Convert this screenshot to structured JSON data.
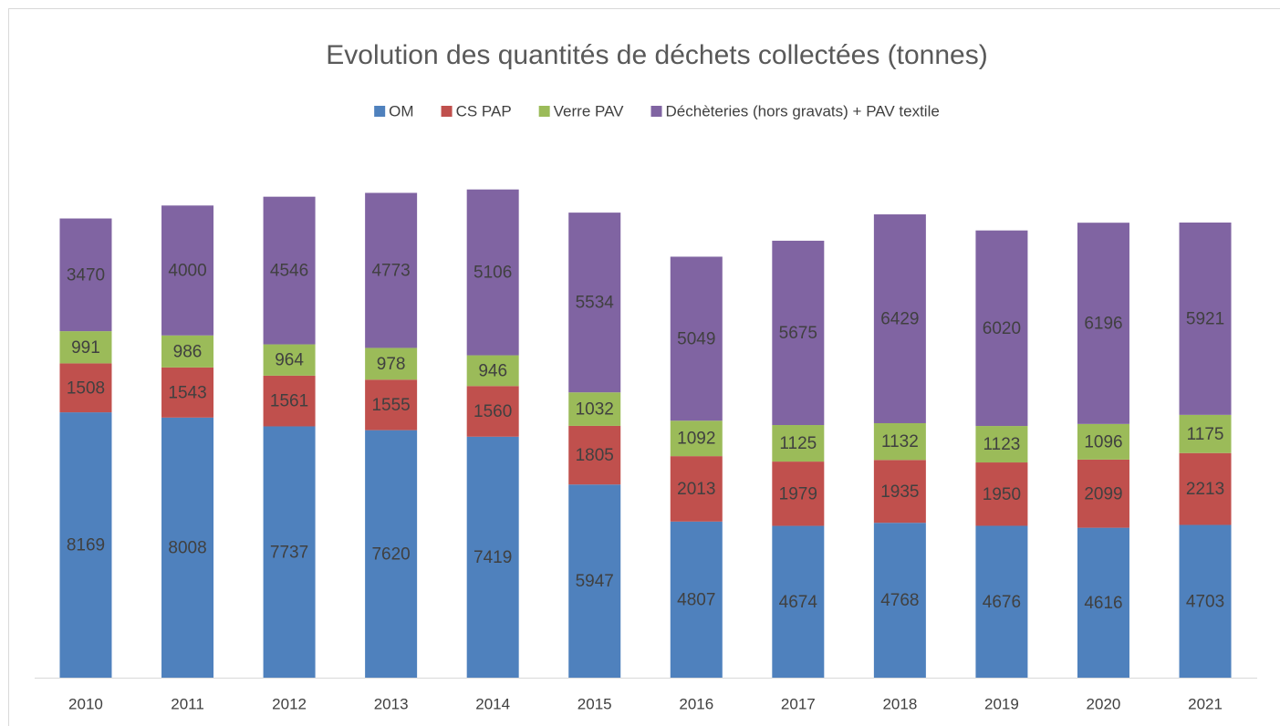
{
  "chart_data": {
    "type": "stacked-bar",
    "title": "Evolution des quantités de déchets collectées (tonnes)",
    "categories": [
      "2010",
      "2011",
      "2012",
      "2013",
      "2014",
      "2015",
      "2016",
      "2017",
      "2018",
      "2019",
      "2020",
      "2021"
    ],
    "series": [
      {
        "name": "OM",
        "color": "#4f81bd",
        "values": [
          8169,
          8008,
          7737,
          7620,
          7419,
          5947,
          4807,
          4674,
          4768,
          4676,
          4616,
          4703
        ]
      },
      {
        "name": "CS PAP",
        "color": "#c0504d",
        "values": [
          1508,
          1543,
          1561,
          1555,
          1560,
          1805,
          2013,
          1979,
          1935,
          1950,
          2099,
          2213
        ]
      },
      {
        "name": "Verre PAV",
        "color": "#9bbb59",
        "values": [
          991,
          986,
          964,
          978,
          946,
          1032,
          1092,
          1125,
          1132,
          1123,
          1096,
          1175
        ]
      },
      {
        "name": "Déchèteries (hors gravats) + PAV textile",
        "color": "#8064a2",
        "values": [
          3470,
          4000,
          4546,
          4773,
          5106,
          5534,
          5049,
          5675,
          6429,
          6020,
          6196,
          5921
        ]
      }
    ],
    "ylim": [
      0,
      18000
    ],
    "legend": "top"
  }
}
